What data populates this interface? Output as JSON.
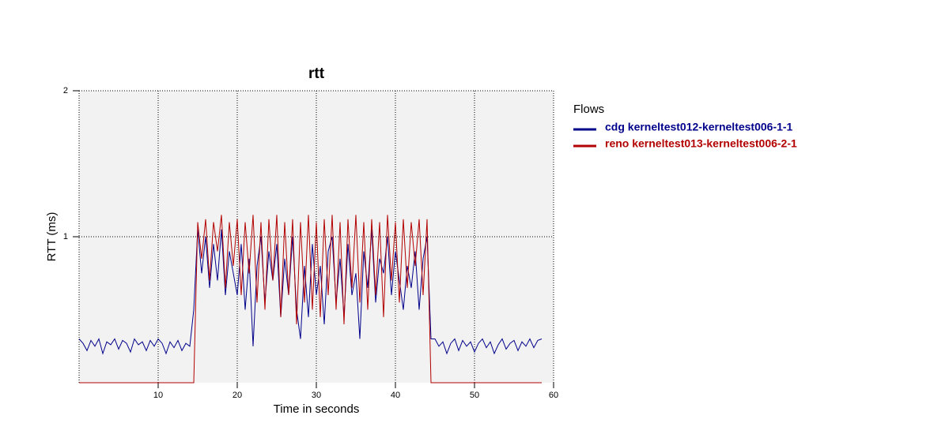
{
  "chart_data": {
    "type": "line",
    "title": "rtt",
    "x_label": "Time in seconds",
    "y_label": "RTT (ms)",
    "legend_title": "Flows",
    "legend_position": "right",
    "grid": true,
    "xlim": [
      0,
      60
    ],
    "xticks": [
      10,
      20,
      30,
      40,
      50,
      60
    ],
    "ylim": [
      0,
      2
    ],
    "yticks": [
      1,
      2
    ],
    "x": [
      0,
      0.5,
      1,
      1.5,
      2,
      2.5,
      3,
      3.5,
      4,
      4.5,
      5,
      5.5,
      6,
      6.5,
      7,
      7.5,
      8,
      8.5,
      9,
      9.5,
      10,
      10.5,
      11,
      11.5,
      12,
      12.5,
      13,
      13.5,
      14,
      14.5,
      15,
      15.5,
      16,
      16.5,
      17,
      17.5,
      18,
      18.5,
      19,
      19.5,
      20,
      20.5,
      21,
      21.5,
      22,
      22.5,
      23,
      23.5,
      24,
      24.5,
      25,
      25.5,
      26,
      26.5,
      27,
      27.5,
      28,
      28.5,
      29,
      29.5,
      30,
      30.5,
      31,
      31.5,
      32,
      32.5,
      33,
      33.5,
      34,
      34.5,
      35,
      35.5,
      36,
      36.5,
      37,
      37.5,
      38,
      38.5,
      39,
      39.5,
      40,
      40.5,
      41,
      41.5,
      42,
      42.5,
      43,
      43.5,
      44,
      44.5,
      45,
      45.5,
      46,
      46.5,
      47,
      47.5,
      48,
      48.5,
      49,
      49.5,
      50,
      50.5,
      51,
      51.5,
      52,
      52.5,
      53,
      53.5,
      54,
      54.5,
      55,
      55.5,
      56,
      56.5,
      57,
      57.5,
      58,
      58.5
    ],
    "series": [
      {
        "name": "cdg kerneltest012-kerneltest006-1-1",
        "color": "#00008b",
        "values": [
          0.3,
          0.27,
          0.22,
          0.29,
          0.25,
          0.3,
          0.2,
          0.28,
          0.26,
          0.3,
          0.23,
          0.29,
          0.27,
          0.21,
          0.3,
          0.26,
          0.28,
          0.22,
          0.29,
          0.25,
          0.3,
          0.27,
          0.2,
          0.28,
          0.24,
          0.29,
          0.22,
          0.27,
          0.25,
          0.5,
          1.05,
          0.75,
          1.0,
          0.65,
          0.95,
          0.7,
          1.05,
          0.6,
          0.9,
          0.75,
          0.6,
          0.95,
          0.5,
          0.85,
          0.25,
          0.8,
          1.0,
          0.55,
          0.9,
          0.7,
          0.95,
          0.45,
          0.85,
          0.6,
          1.0,
          0.5,
          0.3,
          0.8,
          0.45,
          0.95,
          0.6,
          0.8,
          0.4,
          0.9,
          1.0,
          0.55,
          0.85,
          0.45,
          0.95,
          0.6,
          0.75,
          0.3,
          0.9,
          0.65,
          1.05,
          0.55,
          0.85,
          0.75,
          1.0,
          0.6,
          0.9,
          0.7,
          0.5,
          0.8,
          0.65,
          0.9,
          0.5,
          0.85,
          1.0,
          0.3,
          0.3,
          0.25,
          0.28,
          0.2,
          0.27,
          0.3,
          0.22,
          0.29,
          0.25,
          0.28,
          0.21,
          0.27,
          0.3,
          0.24,
          0.28,
          0.2,
          0.26,
          0.3,
          0.23,
          0.27,
          0.29,
          0.22,
          0.28,
          0.25,
          0.3,
          0.24,
          0.29,
          0.3
        ]
      },
      {
        "name": "reno kerneltest013-kerneltest006-2-1",
        "color": "#b30000",
        "values": [
          0,
          0,
          0,
          0,
          0,
          0,
          0,
          0,
          0,
          0,
          0,
          0,
          0,
          0,
          0,
          0,
          0,
          0,
          0,
          0,
          0,
          0,
          0,
          0,
          0,
          0,
          0,
          0,
          0,
          0,
          1.1,
          0.85,
          1.12,
          0.7,
          1.1,
          0.9,
          1.15,
          0.65,
          1.1,
          0.8,
          1.12,
          0.6,
          1.1,
          0.75,
          1.15,
          0.55,
          1.1,
          0.5,
          1.12,
          0.7,
          1.15,
          0.45,
          1.1,
          0.6,
          1.12,
          0.4,
          1.1,
          0.55,
          1.15,
          0.5,
          1.1,
          0.45,
          1.12,
          0.6,
          1.15,
          0.5,
          1.1,
          0.4,
          1.12,
          0.65,
          1.15,
          0.55,
          1.1,
          0.5,
          1.12,
          0.6,
          1.1,
          0.45,
          1.15,
          0.7,
          1.1,
          0.55,
          1.12,
          0.65,
          1.1,
          0.8,
          1.12,
          0.6,
          1.12,
          0,
          0,
          0,
          0,
          0,
          0,
          0,
          0,
          0,
          0,
          0,
          0,
          0,
          0,
          0,
          0,
          0,
          0,
          0,
          0,
          0,
          0,
          0,
          0,
          0,
          0,
          0,
          0,
          0
        ]
      }
    ]
  }
}
